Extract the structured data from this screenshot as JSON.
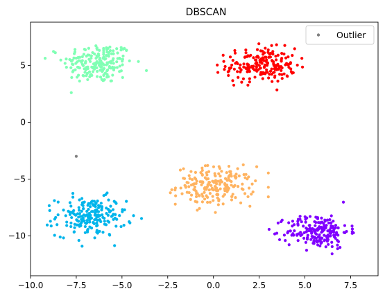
{
  "chart_data": {
    "type": "scatter",
    "title": "DBSCAN",
    "xlabel": "",
    "ylabel": "",
    "xlim": [
      -10.0,
      9.0
    ],
    "ylim": [
      -13.5,
      8.8
    ],
    "xticks": [
      -10.0,
      -7.5,
      -5.0,
      -2.5,
      0.0,
      2.5,
      5.0,
      7.5
    ],
    "xtick_labels": [
      "−10.0",
      "−7.5",
      "−5.0",
      "−2.5",
      "0.0",
      "2.5",
      "5.0",
      "7.5"
    ],
    "yticks": [
      -10,
      -5,
      0,
      5
    ],
    "ytick_labels": [
      "−10",
      "−5",
      "0",
      "5"
    ],
    "grid": false,
    "legend": {
      "position": "top-right",
      "entries": [
        {
          "label": "Outlier",
          "color": "#808080"
        }
      ]
    },
    "clusters": [
      {
        "color": "#80ffb4",
        "center": [
          -6.3,
          5.2
        ],
        "spread": [
          0.95,
          0.9
        ],
        "count": 200
      },
      {
        "color": "#ff0000",
        "center": [
          2.6,
          5.0
        ],
        "spread": [
          0.95,
          0.75
        ],
        "count": 200
      },
      {
        "color": "#ffb360",
        "center": [
          0.1,
          -5.6
        ],
        "spread": [
          1.05,
          0.85
        ],
        "count": 200
      },
      {
        "color": "#00b5eb",
        "center": [
          -6.7,
          -8.3
        ],
        "spread": [
          0.95,
          0.85
        ],
        "count": 200
      },
      {
        "color": "#8000ff",
        "center": [
          5.7,
          -9.6
        ],
        "spread": [
          0.85,
          0.75
        ],
        "count": 200
      }
    ],
    "outliers": [
      {
        "x": -7.5,
        "y": -3.0,
        "color": "#808080"
      }
    ]
  }
}
